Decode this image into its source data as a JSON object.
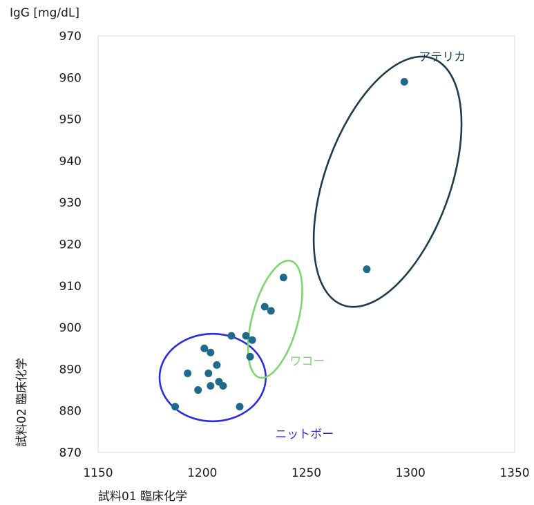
{
  "chart_data": {
    "type": "scatter",
    "title": "",
    "y_unit_label": "IgG [mg/dL]",
    "xlabel": "試料01 臨床化学",
    "ylabel": "試料02 臨床化学",
    "xlim": [
      1150,
      1350
    ],
    "ylim": [
      870,
      970
    ],
    "x_ticks": [
      1150,
      1200,
      1250,
      1300,
      1350
    ],
    "y_ticks": [
      870,
      880,
      890,
      900,
      910,
      920,
      930,
      940,
      950,
      960,
      970
    ],
    "grid": false,
    "marker_color": "#1f6a8a",
    "points": [
      {
        "x": 1187,
        "y": 881
      },
      {
        "x": 1193,
        "y": 889
      },
      {
        "x": 1198,
        "y": 885
      },
      {
        "x": 1201,
        "y": 895
      },
      {
        "x": 1203,
        "y": 889
      },
      {
        "x": 1204,
        "y": 894
      },
      {
        "x": 1204,
        "y": 886
      },
      {
        "x": 1207,
        "y": 891
      },
      {
        "x": 1208,
        "y": 887
      },
      {
        "x": 1210,
        "y": 886
      },
      {
        "x": 1218,
        "y": 881
      },
      {
        "x": 1214,
        "y": 898
      },
      {
        "x": 1221,
        "y": 898
      },
      {
        "x": 1224,
        "y": 897
      },
      {
        "x": 1223,
        "y": 893
      },
      {
        "x": 1230,
        "y": 905
      },
      {
        "x": 1233,
        "y": 904
      },
      {
        "x": 1239,
        "y": 912
      },
      {
        "x": 1279,
        "y": 914
      },
      {
        "x": 1297,
        "y": 959
      }
    ],
    "groups": [
      {
        "label": "ニットボー",
        "color": "#2a2ae8",
        "cx": 1205,
        "cy": 888,
        "rx": 25.5,
        "ry": 10.5,
        "rotate": 0,
        "label_x": 1235,
        "label_y": 873.5
      },
      {
        "label": "ワコー",
        "color": "#7fd66f",
        "cx": 1235,
        "cy": 902,
        "rx": 11,
        "ry": 14.5,
        "rotate": 15,
        "label_x": 1242,
        "label_y": 891
      },
      {
        "label": "アテリカ",
        "color": "#1e3a4f",
        "cx": 1289,
        "cy": 935,
        "rx": 30,
        "ry": 31.5,
        "rotate": 20,
        "label_x": 1304,
        "label_y": 964
      }
    ]
  }
}
